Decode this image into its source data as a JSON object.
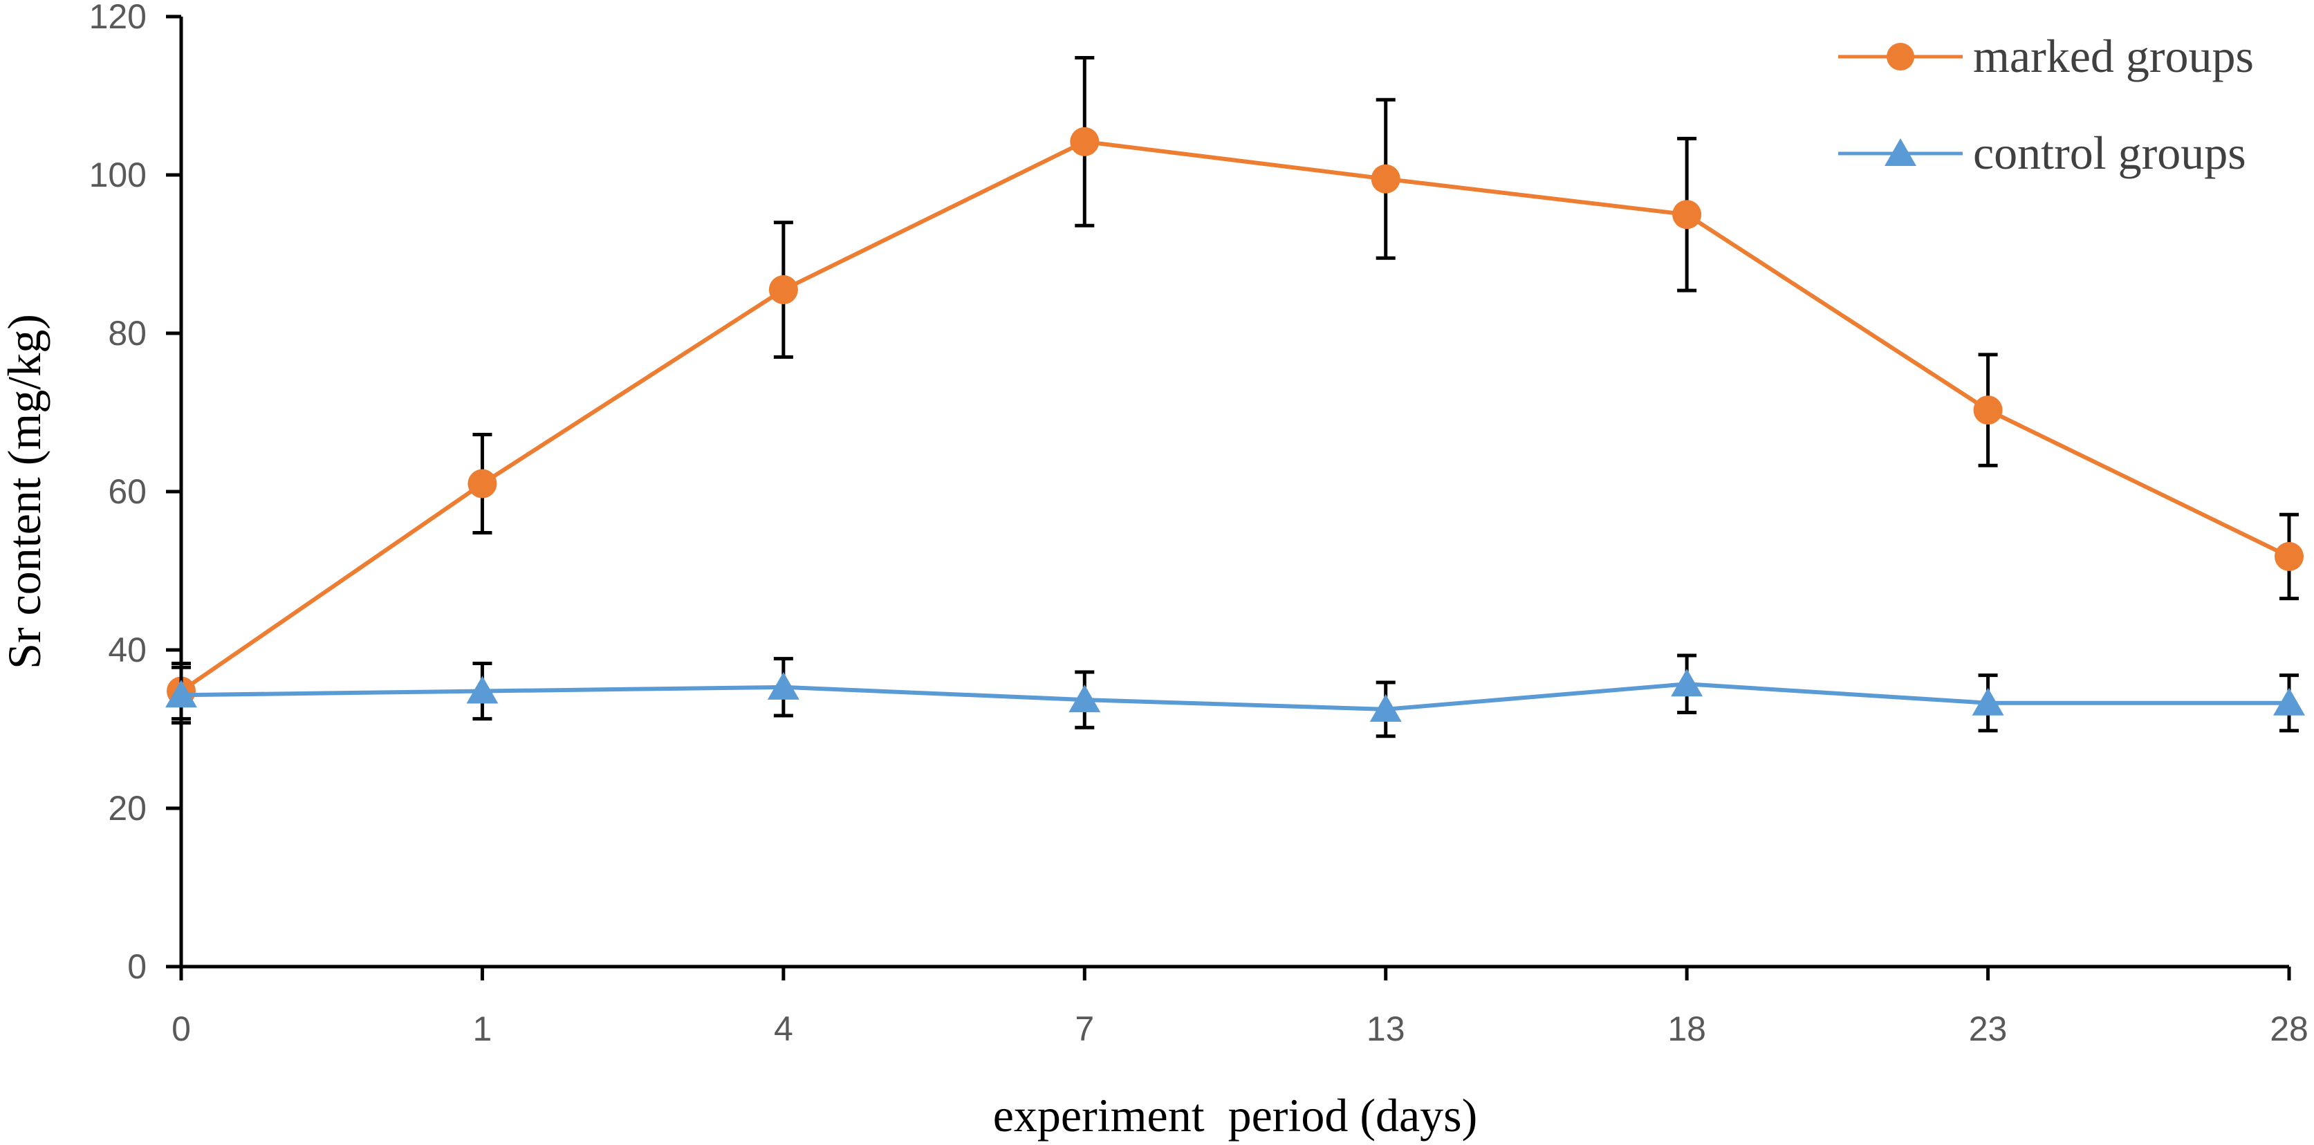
{
  "chart_data": {
    "type": "line",
    "xlabel": "experiment  period (days)",
    "ylabel": "Sr content (mg/kg)",
    "categories": [
      "0",
      "1",
      "4",
      "7",
      "13",
      "18",
      "23",
      "28"
    ],
    "ylim": [
      0,
      120
    ],
    "yticks": [
      0,
      20,
      40,
      60,
      80,
      100,
      120
    ],
    "grid": false,
    "legend_position": "top-right",
    "series": [
      {
        "name": "marked groups",
        "color": "#ED7D31",
        "marker": "circle",
        "values": [
          34.8,
          61.0,
          85.5,
          104.2,
          99.5,
          95.0,
          70.3,
          51.8
        ],
        "errors": [
          3.5,
          6.2,
          8.5,
          10.6,
          10.0,
          9.6,
          7.0,
          5.3
        ]
      },
      {
        "name": "control groups",
        "color": "#5B9BD5",
        "marker": "triangle",
        "values": [
          34.3,
          34.8,
          35.3,
          33.7,
          32.5,
          35.7,
          33.3,
          33.3
        ],
        "errors": [
          3.5,
          3.5,
          3.6,
          3.5,
          3.4,
          3.6,
          3.5,
          3.5
        ]
      }
    ]
  }
}
